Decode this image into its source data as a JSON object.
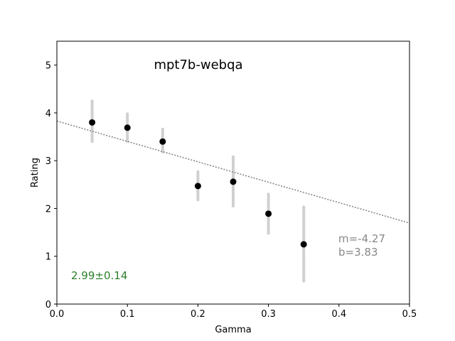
{
  "chart_data": {
    "type": "scatter",
    "title": "mpt7b-webqa",
    "xlabel": "Gamma",
    "ylabel": "Rating",
    "xlim": [
      0,
      0.5
    ],
    "ylim": [
      0,
      5.5
    ],
    "xticks": [
      "0.0",
      "0.1",
      "0.2",
      "0.3",
      "0.4",
      "0.5"
    ],
    "yticks": [
      "0",
      "1",
      "2",
      "3",
      "4",
      "5"
    ],
    "grid": false,
    "points": [
      {
        "x": 0.05,
        "y": 3.8,
        "lo": 3.4,
        "hi": 4.25
      },
      {
        "x": 0.1,
        "y": 3.69,
        "lo": 3.4,
        "hi": 3.98
      },
      {
        "x": 0.15,
        "y": 3.4,
        "lo": 3.18,
        "hi": 3.66
      },
      {
        "x": 0.2,
        "y": 2.47,
        "lo": 2.18,
        "hi": 2.77
      },
      {
        "x": 0.25,
        "y": 2.56,
        "lo": 2.05,
        "hi": 3.08
      },
      {
        "x": 0.3,
        "y": 1.89,
        "lo": 1.48,
        "hi": 2.3
      },
      {
        "x": 0.35,
        "y": 1.25,
        "lo": 0.48,
        "hi": 2.03
      }
    ],
    "fit_line": {
      "slope": -4.27,
      "intercept": 3.83
    },
    "annotations": {
      "fit_m": "m=-4.27",
      "fit_b": "b=3.83",
      "score": "2.99±0.14"
    },
    "colors": {
      "points": "#000000",
      "errorbars": "#c8c8c8",
      "fit_line": "#808080",
      "fit_text": "#888888",
      "score_text": "#2a7f2a"
    }
  }
}
